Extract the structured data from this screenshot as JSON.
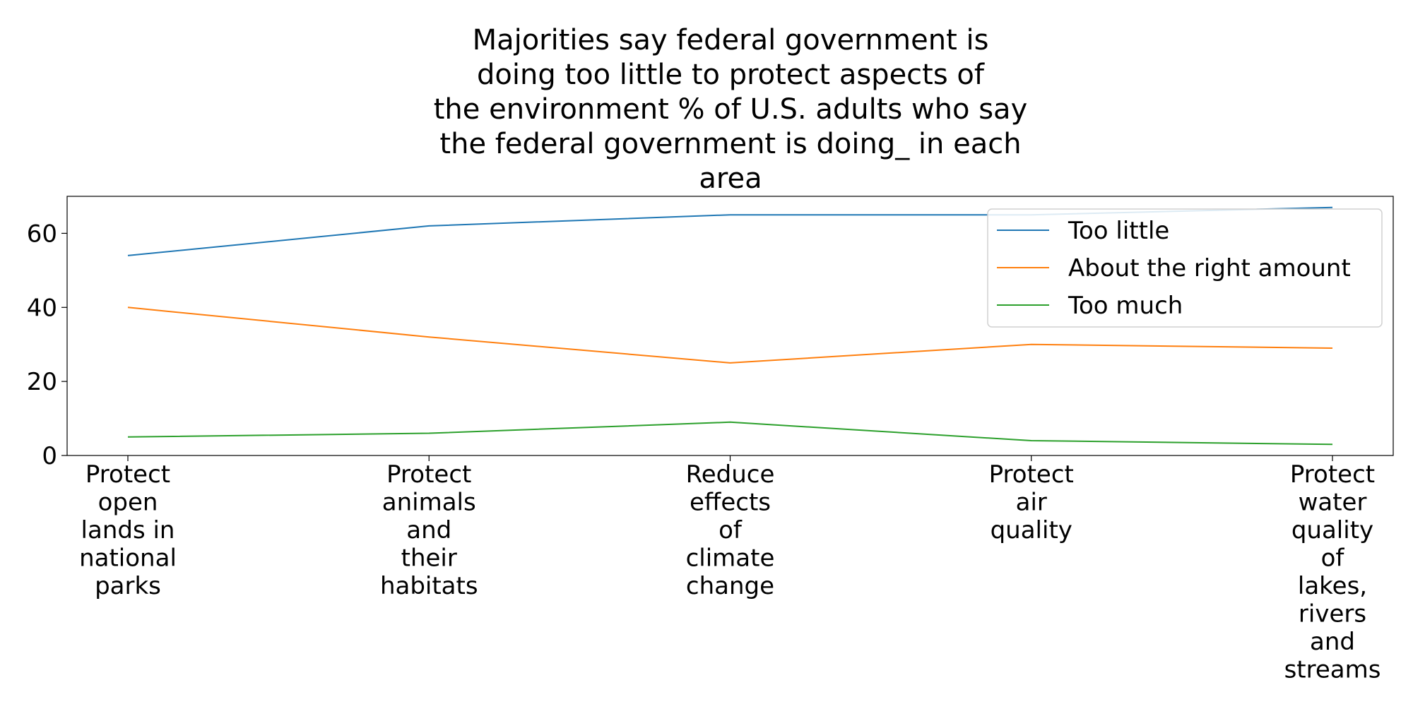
{
  "chart_data": {
    "type": "line",
    "title_lines": [
      "Majorities say federal government is",
      "doing too little to protect aspects of",
      "the environment % of U.S. adults who say",
      "the federal government is doing_ in each",
      "area"
    ],
    "categories": [
      [
        "Protect",
        "open",
        "lands in",
        "national",
        "parks"
      ],
      [
        "Protect",
        "animals",
        "and",
        "their",
        "habitats"
      ],
      [
        "Reduce",
        "effects",
        "of",
        "climate",
        "change"
      ],
      [
        "Protect",
        "air",
        "quality"
      ],
      [
        "Protect",
        "water",
        "quality",
        "of",
        "lakes,",
        "rivers",
        "and",
        "streams"
      ]
    ],
    "series": [
      {
        "name": "Too little",
        "values": [
          54,
          62,
          65,
          65,
          67
        ],
        "color": "#1f77b4"
      },
      {
        "name": "About the right amount",
        "values": [
          40,
          32,
          25,
          30,
          29
        ],
        "color": "#ff7f0e"
      },
      {
        "name": "Too much",
        "values": [
          5,
          6,
          9,
          4,
          3
        ],
        "color": "#2ca02c"
      }
    ],
    "yticks": [
      0,
      20,
      40,
      60
    ],
    "ylim": [
      0,
      70
    ],
    "xlabel": "",
    "ylabel": "",
    "grid": false,
    "legend_position": "top-right"
  }
}
